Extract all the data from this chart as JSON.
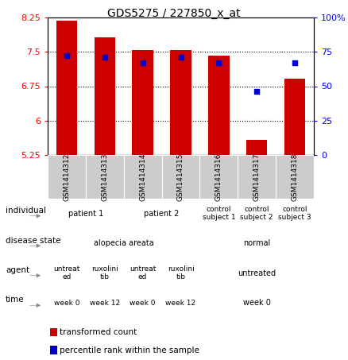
{
  "title": "GDS5275 / 227850_x_at",
  "samples": [
    "GSM1414312",
    "GSM1414313",
    "GSM1414314",
    "GSM1414315",
    "GSM1414316",
    "GSM1414317",
    "GSM1414318"
  ],
  "bar_values": [
    8.18,
    7.82,
    7.54,
    7.54,
    7.42,
    5.58,
    6.92
  ],
  "bar_base": 5.25,
  "blue_dot_percentile": [
    72,
    71,
    67,
    71,
    67,
    46,
    67
  ],
  "ylim_left": [
    5.25,
    8.25
  ],
  "ylim_right": [
    0,
    100
  ],
  "yticks_left": [
    5.25,
    6.0,
    6.75,
    7.5,
    8.25
  ],
  "yticks_right": [
    0,
    25,
    50,
    75,
    100
  ],
  "ytick_labels_left": [
    "5.25",
    "6",
    "6.75",
    "7.5",
    "8.25"
  ],
  "ytick_labels_right": [
    "0",
    "25",
    "50",
    "75",
    "100%"
  ],
  "bar_color": "#cc0000",
  "blue_dot_color": "#0000cc",
  "annotation_rows": [
    {
      "label": "individual",
      "cells": [
        {
          "text": "patient 1",
          "span": 2,
          "color": "#aaeebb"
        },
        {
          "text": "patient 2",
          "span": 2,
          "color": "#aaeebb"
        },
        {
          "text": "control\nsubject 1",
          "span": 1,
          "color": "#ccf5dd"
        },
        {
          "text": "control\nsubject 2",
          "span": 1,
          "color": "#bbffcc"
        },
        {
          "text": "control\nsubject 3",
          "span": 1,
          "color": "#bbffcc"
        }
      ]
    },
    {
      "label": "disease state",
      "cells": [
        {
          "text": "alopecia areata",
          "span": 4,
          "color": "#7799ee"
        },
        {
          "text": "normal",
          "span": 3,
          "color": "#aaccff"
        }
      ]
    },
    {
      "label": "agent",
      "cells": [
        {
          "text": "untreat\ned",
          "span": 1,
          "color": "#ffbbff"
        },
        {
          "text": "ruxolini\ntib",
          "span": 1,
          "color": "#ff99ee"
        },
        {
          "text": "untreat\ned",
          "span": 1,
          "color": "#ffbbff"
        },
        {
          "text": "ruxolini\ntib",
          "span": 1,
          "color": "#ff99ee"
        },
        {
          "text": "untreated",
          "span": 3,
          "color": "#ffbbff"
        }
      ]
    },
    {
      "label": "time",
      "cells": [
        {
          "text": "week 0",
          "span": 1,
          "color": "#ffdd99"
        },
        {
          "text": "week 12",
          "span": 1,
          "color": "#ffcc77"
        },
        {
          "text": "week 0",
          "span": 1,
          "color": "#ffdd99"
        },
        {
          "text": "week 12",
          "span": 1,
          "color": "#ffcc77"
        },
        {
          "text": "week 0",
          "span": 3,
          "color": "#ffdd99"
        }
      ]
    }
  ],
  "legend": [
    {
      "color": "#cc0000",
      "label": "transformed count"
    },
    {
      "color": "#0000cc",
      "label": "percentile rank within the sample"
    }
  ],
  "fig_width": 4.38,
  "fig_height": 4.53,
  "dpi": 100
}
